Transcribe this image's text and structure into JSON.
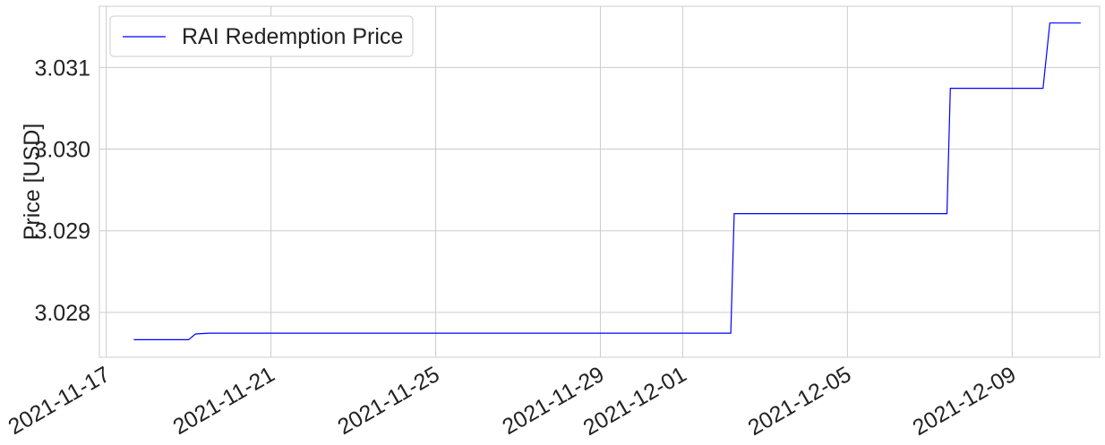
{
  "chart_data": {
    "type": "line",
    "title": "",
    "xlabel": "",
    "ylabel": "Price [USD]",
    "x_ticks": [
      "2021-11-17",
      "2021-11-21",
      "2021-11-25",
      "2021-11-29",
      "2021-12-01",
      "2021-12-05",
      "2021-12-09"
    ],
    "y_ticks": [
      "3.028",
      "3.029",
      "3.030",
      "3.031"
    ],
    "xlim": [
      "2021-11-16T20:00",
      "2021-12-11T03:00"
    ],
    "ylim": [
      3.02745,
      3.03175
    ],
    "grid": true,
    "legend_position": "top-left",
    "series": [
      {
        "name": "RAI Redemption Price",
        "color": "#0000ff",
        "x": [
          "2021-11-17T16:00",
          "2021-11-19T00:00",
          "2021-11-19T04:00",
          "2021-11-19T12:00",
          "2021-12-02T04:00",
          "2021-12-02T06:00",
          "2021-12-07T10:00",
          "2021-12-07T12:00",
          "2021-12-09T18:00",
          "2021-12-09T22:00",
          "2021-12-10T16:00"
        ],
        "y": [
          3.027665,
          3.027665,
          3.027735,
          3.027745,
          3.027745,
          3.02921,
          3.02921,
          3.030745,
          3.030745,
          3.031545,
          3.031545
        ]
      }
    ]
  }
}
